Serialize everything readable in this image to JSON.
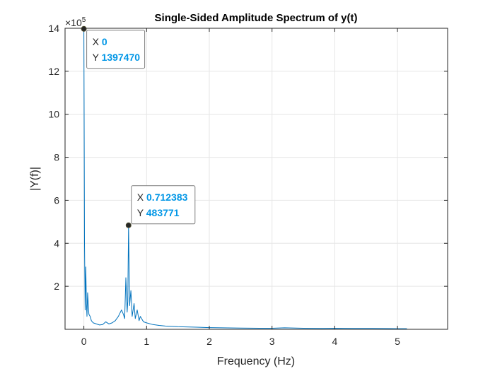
{
  "chart_data": {
    "type": "line",
    "title": "Single-Sided Amplitude Spectrum of y(t)",
    "xlabel": "Frequency (Hz)",
    "ylabel": "|Y(f)|",
    "exponent_label": "×10",
    "exponent_power": "5",
    "xlim": [
      -0.3,
      5.8
    ],
    "ylim": [
      0,
      1400000
    ],
    "xticks": [
      0,
      1,
      2,
      3,
      4,
      5
    ],
    "yticks": [
      200000,
      400000,
      600000,
      800000,
      1000000,
      1200000,
      1400000
    ],
    "ytick_labels": [
      "2",
      "4",
      "6",
      "8",
      "10",
      "12",
      "14"
    ],
    "grid": true,
    "line_color": "#0072bd",
    "series": [
      {
        "x": [
          0,
          0.01,
          0.02,
          0.03,
          0.04,
          0.05,
          0.06,
          0.08,
          0.1,
          0.12,
          0.15,
          0.2,
          0.25,
          0.3,
          0.35,
          0.4,
          0.45,
          0.5,
          0.55,
          0.6,
          0.63,
          0.65,
          0.67,
          0.69,
          0.7,
          0.712383,
          0.73,
          0.75,
          0.77,
          0.8,
          0.82,
          0.85,
          0.88,
          0.9,
          0.95,
          1.0,
          1.1,
          1.2,
          1.3,
          1.5,
          1.8,
          2.0,
          2.2,
          2.5,
          2.8,
          3.0,
          3.2,
          3.5,
          3.8,
          4.0,
          4.3,
          4.6,
          5.0,
          5.15
        ],
        "y": [
          1397470,
          400000,
          90000,
          290000,
          120000,
          60000,
          170000,
          70000,
          60000,
          40000,
          30000,
          25000,
          20000,
          22000,
          35000,
          25000,
          30000,
          40000,
          60000,
          90000,
          70000,
          50000,
          240000,
          80000,
          130000,
          483771,
          110000,
          180000,
          60000,
          120000,
          50000,
          90000,
          40000,
          60000,
          35000,
          30000,
          22000,
          18000,
          15000,
          12000,
          10000,
          8000,
          7000,
          6000,
          5000,
          5000,
          7000,
          5000,
          4000,
          5000,
          4000,
          4000,
          3000,
          3000
        ]
      }
    ],
    "datatips": [
      {
        "x_key": "X",
        "x_value": "0",
        "y_key": "Y",
        "y_value": "1397470",
        "x": 0,
        "y": 1397470
      },
      {
        "x_key": "X",
        "x_value": "0.712383",
        "y_key": "Y",
        "y_value": "483771",
        "x": 0.712383,
        "y": 483771
      }
    ]
  }
}
